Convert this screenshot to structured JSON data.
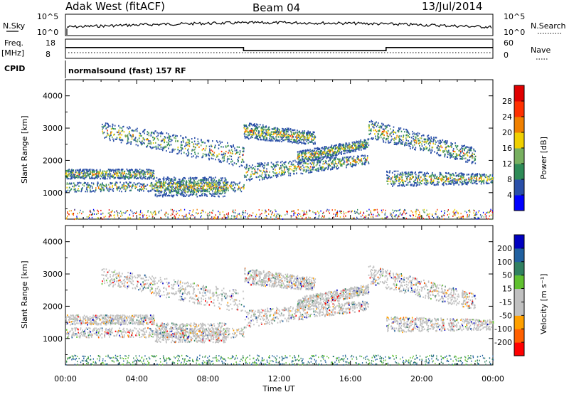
{
  "header": {
    "station": "Adak West (fitACF)",
    "beam": "Beam 04",
    "date": "13/Jul/2014"
  },
  "labels": {
    "nsky": "N.Sky",
    "nsky_ticks": [
      "10^5",
      "10^0"
    ],
    "nsearch": "N.Search",
    "nsearch_ticks": [
      "10^5",
      "10^0"
    ],
    "freq": "Freq.",
    "freq_unit": "[MHz]",
    "freq_ticks": [
      "18",
      "8"
    ],
    "nave": "Nave",
    "nave_ticks": [
      "60",
      "0"
    ],
    "cpid": "CPID",
    "cpid_value": "normalsound (fast) 157 RF",
    "ylabel_power": "Slant Range [km]",
    "ylabel_velocity": "Slant Range [km]",
    "xlabel": "Time UT",
    "power_cbar": "Power [dB]",
    "velocity_cbar": "Velocity [m s⁻¹]"
  },
  "colors": {
    "power_scale": [
      "#0000ff",
      "#2a4fa8",
      "#2e8b57",
      "#78b060",
      "#f0d000",
      "#f08000",
      "#ff3000",
      "#e00000"
    ],
    "velocity_scale": [
      "#ff0000",
      "#ff6000",
      "#ffa000",
      "#c0c0c0",
      "#c0c0c0",
      "#60c030",
      "#308060",
      "#2060a0",
      "#0000c0"
    ]
  },
  "chart_data": [
    {
      "type": "line",
      "title": "",
      "panel": "N.Sky / N.Search",
      "x": [
        "00:00",
        "04:00",
        "08:00",
        "12:00",
        "16:00",
        "20:00",
        "00:00"
      ],
      "ylim": [
        "10^0",
        "10^5"
      ]
    },
    {
      "type": "line",
      "panel": "Freq / Nave",
      "series": [
        {
          "name": "Freq.",
          "x": [
            "00:00",
            "10:00",
            "10:00",
            "18:00",
            "18:00",
            "00:00"
          ],
          "values": [
            14,
            14,
            12,
            12,
            14,
            14
          ]
        }
      ],
      "ylim_freq": [
        8,
        18
      ],
      "ylim_nave": [
        0,
        60
      ]
    },
    {
      "type": "heatmap",
      "panel": "Power",
      "ylabel": "Slant Range [km]",
      "yticks": [
        1000,
        2000,
        3000,
        4000
      ],
      "ylim": [
        180,
        4500
      ],
      "colorbar_label": "Power [dB]",
      "colorbar_ticks": [
        4,
        8,
        12,
        16,
        20,
        24,
        28
      ],
      "xticks": [
        "00:00",
        "04:00",
        "08:00",
        "12:00",
        "16:00",
        "20:00",
        "00:00"
      ]
    },
    {
      "type": "heatmap",
      "panel": "Velocity",
      "ylabel": "Slant Range [km]",
      "yticks": [
        1000,
        2000,
        3000,
        4000
      ],
      "ylim": [
        180,
        4500
      ],
      "colorbar_label": "Velocity [m s⁻¹]",
      "colorbar_ticks": [
        200,
        100,
        50,
        15,
        -15,
        -50,
        -100,
        -200
      ],
      "xlabel": "Time UT",
      "xticks": [
        "00:00",
        "04:00",
        "08:00",
        "12:00",
        "16:00",
        "20:00",
        "00:00"
      ]
    }
  ]
}
